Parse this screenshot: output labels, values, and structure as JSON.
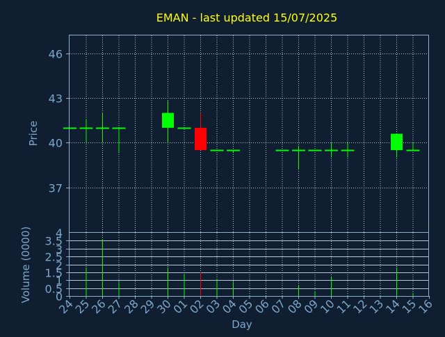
{
  "title": "EMAN - last updated 15/07/2025",
  "colors": {
    "background": "#0f1e30",
    "title": "#ffff00",
    "axis_text": "#7ea6c9",
    "frame": "#8fb1cf",
    "grid": "#b8c8d8",
    "up": "#00ff00",
    "down": "#ff0000"
  },
  "chart_data": [
    {
      "type": "candlestick",
      "ylabel": "Price",
      "ylim": [
        34,
        47.2
      ],
      "yticks": [
        37,
        40,
        43,
        46
      ],
      "grid": true,
      "x_count": 23,
      "candles": [
        {
          "x": 0,
          "day": "24",
          "open": 41.0,
          "high": 41.0,
          "low": 41.0,
          "close": 41.0
        },
        {
          "x": 1,
          "day": "25",
          "open": 41.0,
          "high": 41.6,
          "low": 40.0,
          "close": 41.0
        },
        {
          "x": 2,
          "day": "26",
          "open": 41.0,
          "high": 42.0,
          "low": 40.0,
          "close": 41.0
        },
        {
          "x": 3,
          "day": "27",
          "open": 41.0,
          "high": 41.0,
          "low": 39.3,
          "close": 41.0
        },
        {
          "x": 6,
          "day": "30",
          "open": 41.0,
          "high": 42.8,
          "low": 40.0,
          "close": 42.0
        },
        {
          "x": 7,
          "day": "01",
          "open": 41.0,
          "high": 41.0,
          "low": 41.0,
          "close": 41.0
        },
        {
          "x": 8,
          "day": "02",
          "open": 41.0,
          "high": 42.0,
          "low": 39.5,
          "close": 39.5
        },
        {
          "x": 9,
          "day": "03",
          "open": 39.5,
          "high": 39.5,
          "low": 39.5,
          "close": 39.5
        },
        {
          "x": 10,
          "day": "04",
          "open": 39.5,
          "high": 39.5,
          "low": 39.3,
          "close": 39.5
        },
        {
          "x": 13,
          "day": "07",
          "open": 39.5,
          "high": 39.5,
          "low": 39.5,
          "close": 39.5
        },
        {
          "x": 14,
          "day": "08",
          "open": 39.5,
          "high": 39.8,
          "low": 38.2,
          "close": 39.5
        },
        {
          "x": 15,
          "day": "09",
          "open": 39.5,
          "high": 39.5,
          "low": 39.5,
          "close": 39.5
        },
        {
          "x": 16,
          "day": "10",
          "open": 39.5,
          "high": 40.0,
          "low": 39.0,
          "close": 39.5
        },
        {
          "x": 17,
          "day": "11",
          "open": 39.5,
          "high": 40.0,
          "low": 39.0,
          "close": 39.5
        },
        {
          "x": 20,
          "day": "14",
          "open": 39.5,
          "high": 40.6,
          "low": 39.0,
          "close": 40.6
        },
        {
          "x": 21,
          "day": "15",
          "open": 39.5,
          "high": 40.0,
          "low": 39.5,
          "close": 39.5
        }
      ]
    },
    {
      "type": "bar",
      "xlabel": "Day",
      "ylabel": "Volume (0000)",
      "ylim": [
        0,
        4
      ],
      "yticks": [
        "0",
        "0.5",
        "1",
        "1.5",
        "2",
        "2.5",
        "3",
        "3.5",
        "4"
      ],
      "grid": true,
      "categories": [
        "24",
        "25",
        "26",
        "27",
        "28",
        "29",
        "30",
        "01",
        "02",
        "03",
        "04",
        "05",
        "06",
        "07",
        "08",
        "09",
        "10",
        "11",
        "12",
        "13",
        "14",
        "15",
        "16"
      ],
      "volumes": [
        {
          "x": 1,
          "value": 1.8,
          "dir": "up"
        },
        {
          "x": 2,
          "value": 3.6,
          "dir": "up"
        },
        {
          "x": 3,
          "value": 0.9,
          "dir": "up"
        },
        {
          "x": 6,
          "value": 1.8,
          "dir": "up"
        },
        {
          "x": 7,
          "value": 1.4,
          "dir": "up"
        },
        {
          "x": 8,
          "value": 1.5,
          "dir": "down"
        },
        {
          "x": 9,
          "value": 1.1,
          "dir": "up"
        },
        {
          "x": 10,
          "value": 0.9,
          "dir": "up"
        },
        {
          "x": 14,
          "value": 0.7,
          "dir": "up"
        },
        {
          "x": 15,
          "value": 0.3,
          "dir": "up"
        },
        {
          "x": 16,
          "value": 1.2,
          "dir": "up"
        },
        {
          "x": 20,
          "value": 1.8,
          "dir": "up"
        },
        {
          "x": 21,
          "value": 0.2,
          "dir": "up"
        }
      ]
    }
  ]
}
